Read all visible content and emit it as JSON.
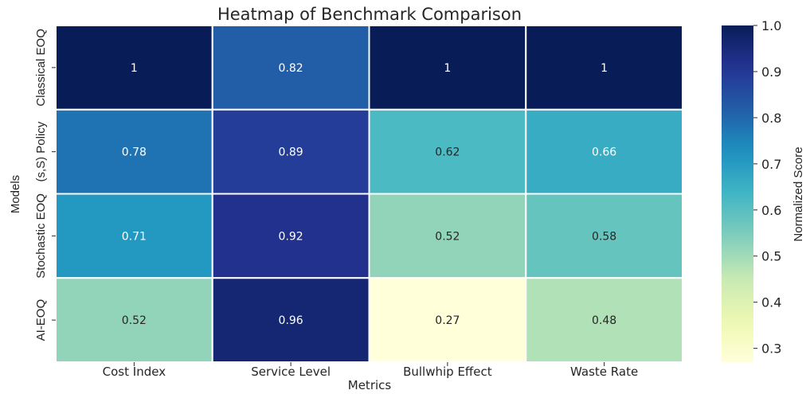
{
  "chart_data": {
    "type": "heatmap",
    "title": "Heatmap of Benchmark Comparison",
    "xlabel": "Metrics",
    "ylabel": "Models",
    "x_categories": [
      "Cost Index",
      "Service Level",
      "Bullwhip Effect",
      "Waste Rate"
    ],
    "y_categories": [
      "Classical EOQ",
      "(s,S) Policy",
      "Stochastic EOQ",
      "AI-EOQ"
    ],
    "values": [
      [
        1.0,
        0.82,
        1.0,
        1.0
      ],
      [
        0.78,
        0.89,
        0.62,
        0.66
      ],
      [
        0.71,
        0.92,
        0.52,
        0.58
      ],
      [
        0.52,
        0.96,
        0.27,
        0.48
      ]
    ],
    "annotations": [
      [
        "1",
        "0.82",
        "1",
        "1"
      ],
      [
        "0.78",
        "0.89",
        "0.62",
        "0.66"
      ],
      [
        "0.71",
        "0.92",
        "0.52",
        "0.58"
      ],
      [
        "0.52",
        "0.96",
        "0.27",
        "0.48"
      ]
    ],
    "colormap": "YlGnBu",
    "colorbar": {
      "label": "Normalized Score",
      "range": [
        0.27,
        1.0
      ],
      "ticks": [
        1.0,
        0.9,
        0.8,
        0.7,
        0.6,
        0.5,
        0.4,
        0.3
      ],
      "tick_labels": [
        "1.0",
        "0.9",
        "0.8",
        "0.7",
        "0.6",
        "0.5",
        "0.4",
        "0.3"
      ]
    },
    "cell_border_color": "#ffffff",
    "legend": "right (colorbar)",
    "grid": false
  }
}
